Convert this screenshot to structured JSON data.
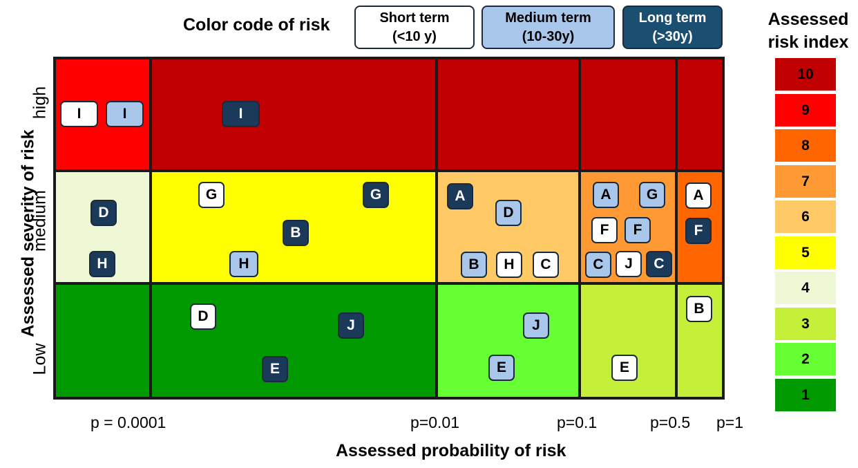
{
  "legend": {
    "title": "Color code of risk",
    "short": {
      "line1": "Short term",
      "line2": "(<10 y)"
    },
    "medium": {
      "line1": "Medium term",
      "line2": "(10-30y)"
    },
    "long": {
      "line1": "Long term",
      "line2": "(>30y)"
    }
  },
  "axes": {
    "y_title": "Assessed severity of risk",
    "y_levels": {
      "high": "high",
      "medium": "medium",
      "low": "Low"
    },
    "x_title": "Assessed probability of risk",
    "x_ticks": [
      "p = 0.0001",
      "p=0.01",
      "p=0.1",
      "p=0.5",
      "p=1"
    ]
  },
  "risk_index": {
    "title_line1": "Assessed",
    "title_line2": "risk index",
    "levels": [
      {
        "value": "10",
        "color": "#c00000"
      },
      {
        "value": "9",
        "color": "#ff0000"
      },
      {
        "value": "8",
        "color": "#ff6600"
      },
      {
        "value": "7",
        "color": "#ff9933"
      },
      {
        "value": "6",
        "color": "#ffc966"
      },
      {
        "value": "5",
        "color": "#ffff00"
      },
      {
        "value": "4",
        "color": "#eef8d4"
      },
      {
        "value": "3",
        "color": "#c6ef3a"
      },
      {
        "value": "2",
        "color": "#66ff33"
      },
      {
        "value": "1",
        "color": "#009900"
      }
    ]
  },
  "matrix": {
    "cells": {
      "high_0": "#ff0000",
      "high_1": "#c00000",
      "high_2": "#c00000",
      "high_3": "#c00000",
      "high_4": "#c00000",
      "med_0": "#eef8d4",
      "med_1": "#ffff00",
      "med_2": "#ffc966",
      "med_3": "#ff9933",
      "med_4": "#ff6600",
      "low_0": "#009900",
      "low_1": "#009900",
      "low_2": "#66ff33",
      "low_3": "#c6ef3a",
      "low_4": "#c6ef3a"
    },
    "tags": [
      {
        "label": "I",
        "term": "short"
      },
      {
        "label": "I",
        "term": "medium"
      },
      {
        "label": "I",
        "term": "long"
      },
      {
        "label": "D",
        "term": "long"
      },
      {
        "label": "H",
        "term": "long"
      },
      {
        "label": "G",
        "term": "short"
      },
      {
        "label": "G",
        "term": "long"
      },
      {
        "label": "B",
        "term": "long"
      },
      {
        "label": "H",
        "term": "medium"
      },
      {
        "label": "A",
        "term": "long"
      },
      {
        "label": "D",
        "term": "medium"
      },
      {
        "label": "B",
        "term": "medium"
      },
      {
        "label": "H",
        "term": "short"
      },
      {
        "label": "C",
        "term": "short"
      },
      {
        "label": "A",
        "term": "medium"
      },
      {
        "label": "G",
        "term": "medium"
      },
      {
        "label": "F",
        "term": "short"
      },
      {
        "label": "F",
        "term": "medium"
      },
      {
        "label": "C",
        "term": "medium"
      },
      {
        "label": "J",
        "term": "short"
      },
      {
        "label": "C",
        "term": "long"
      },
      {
        "label": "A",
        "term": "short"
      },
      {
        "label": "F",
        "term": "long"
      },
      {
        "label": "D",
        "term": "short"
      },
      {
        "label": "J",
        "term": "long"
      },
      {
        "label": "E",
        "term": "long"
      },
      {
        "label": "J",
        "term": "medium"
      },
      {
        "label": "E",
        "term": "medium"
      },
      {
        "label": "E",
        "term": "short"
      },
      {
        "label": "B",
        "term": "short"
      }
    ]
  }
}
